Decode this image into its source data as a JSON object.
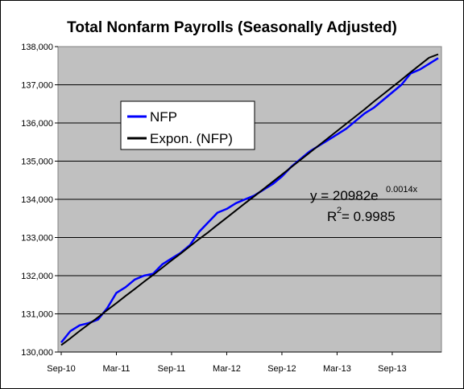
{
  "chart_data": {
    "type": "line",
    "title": "Total Nonfarm Payrolls (Seasonally Adjusted)",
    "xlabel": "",
    "ylabel": "",
    "ylim": [
      130000,
      138000
    ],
    "yticks": [
      130000,
      131000,
      132000,
      133000,
      134000,
      135000,
      136000,
      137000,
      138000
    ],
    "ytick_labels": [
      "130,000",
      "131,000",
      "132,000",
      "133,000",
      "134,000",
      "135,000",
      "136,000",
      "137,000",
      "138,000"
    ],
    "x_tick_labels": [
      "Sep-10",
      "Mar-11",
      "Sep-11",
      "Mar-12",
      "Sep-12",
      "Mar-13",
      "Sep-13"
    ],
    "x_tick_indices": [
      0,
      6,
      12,
      18,
      24,
      30,
      36
    ],
    "x_count": 42,
    "grid": true,
    "legend_position": "upper-left",
    "series": [
      {
        "name": "NFP",
        "color": "#0000ff",
        "values": [
          130250,
          130550,
          130700,
          130760,
          130850,
          131150,
          131550,
          131700,
          131900,
          132000,
          132050,
          132300,
          132450,
          132600,
          132800,
          133150,
          133400,
          133650,
          133750,
          133900,
          134000,
          134100,
          134250,
          134400,
          134600,
          134850,
          135050,
          135250,
          135400,
          135550,
          135700,
          135850,
          136050,
          136250,
          136400,
          136600,
          136800,
          137000,
          137300,
          137400,
          137550,
          137700
        ]
      },
      {
        "name": "Expon. (NFP)",
        "color": "#000000",
        "trend": {
          "a": 20982,
          "b": 0.0014
        },
        "values": [
          130180,
          130360,
          130550,
          130730,
          130910,
          131100,
          131280,
          131470,
          131650,
          131840,
          132020,
          132210,
          132400,
          132580,
          132770,
          132960,
          133140,
          133330,
          133520,
          133710,
          133900,
          134080,
          134270,
          134460,
          134650,
          134840,
          135030,
          135220,
          135410,
          135600,
          135790,
          135980,
          136170,
          136360,
          136560,
          136750,
          136940,
          137130,
          137330,
          137520,
          137710,
          137800
        ]
      }
    ],
    "annotation": {
      "eq_prefix": "y = 20982e",
      "eq_exponent": "0.0014x",
      "r2_prefix": "R",
      "r2_sup": "2",
      "r2_suffix": " = 0.9985"
    },
    "colors": {
      "plot_background": "#c0c0c0",
      "grid": "#000000"
    }
  }
}
